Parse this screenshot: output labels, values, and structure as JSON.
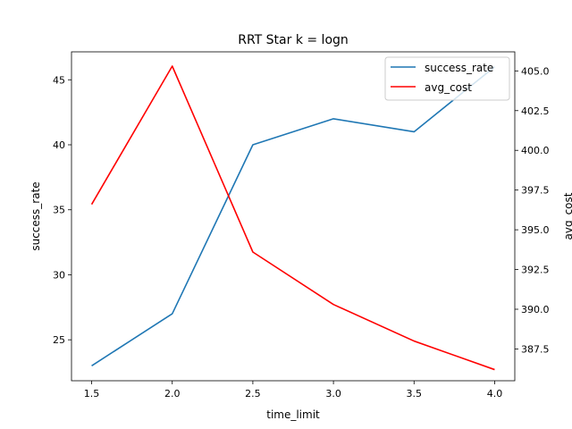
{
  "chart_data": {
    "type": "line",
    "title": "RRT Star k = logn",
    "xlabel": "time_limit",
    "ylabel_left": "success_rate",
    "ylabel_right": "avg_cost",
    "x": [
      1.5,
      2.0,
      2.5,
      3.0,
      3.5,
      4.0
    ],
    "x_ticks": [
      "1.5",
      "2.0",
      "2.5",
      "3.0",
      "3.5",
      "4.0"
    ],
    "xlim": [
      1.375,
      4.125
    ],
    "y_left_ticks": [
      "25",
      "30",
      "35",
      "40",
      "45"
    ],
    "y_left_lim": [
      21.85,
      47.15
    ],
    "y_right_ticks": [
      "387.5",
      "390.0",
      "392.5",
      "395.0",
      "397.5",
      "400.0",
      "402.5",
      "405.0"
    ],
    "y_right_lim": [
      385.5,
      406.2
    ],
    "grid": false,
    "legend_position": "top-right",
    "series": [
      {
        "name": "success_rate",
        "axis": "left",
        "color": "#1f77b4",
        "values": [
          23,
          27,
          40,
          42,
          41,
          46
        ]
      },
      {
        "name": "avg_cost",
        "axis": "right",
        "color": "#ff0000",
        "values": [
          396.6,
          405.3,
          393.6,
          390.3,
          388.0,
          386.2
        ]
      }
    ]
  }
}
